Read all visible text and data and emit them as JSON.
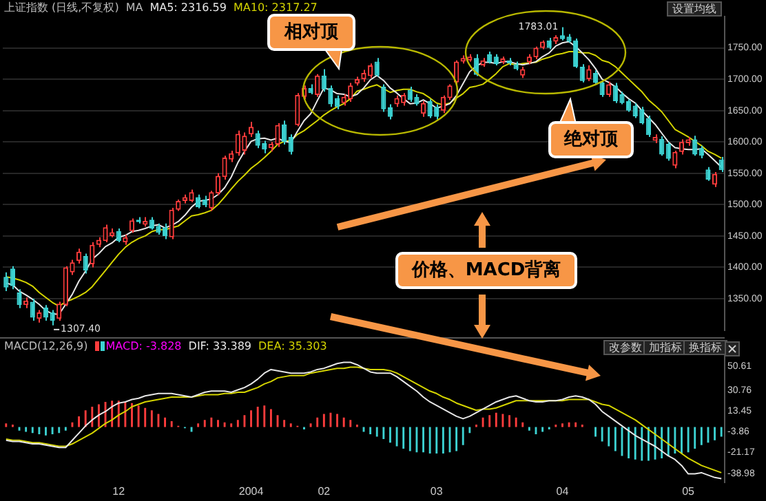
{
  "chart_data": [
    {
      "type": "candlestick",
      "title": "上证指数 (日线,不复权)",
      "legend_title": "MA",
      "legend": "top left",
      "grid": "y",
      "tick_labels": "y",
      "categories": [
        null,
        null,
        null,
        null,
        null,
        null,
        null,
        null,
        null,
        null,
        null,
        null,
        null,
        null,
        null,
        null,
        null,
        "12",
        null,
        null,
        null,
        null,
        null,
        null,
        null,
        null,
        null,
        null,
        null,
        null,
        null,
        null,
        null,
        null,
        null,
        null,
        null,
        "2004",
        null,
        null,
        null,
        null,
        null,
        null,
        null,
        null,
        null,
        null,
        "02",
        null,
        null,
        null,
        null,
        null,
        null,
        null,
        null,
        null,
        null,
        null,
        null,
        null,
        null,
        null,
        null,
        "03",
        null,
        null,
        null,
        null,
        null,
        null,
        null,
        null,
        null,
        null,
        null,
        null,
        null,
        null,
        null,
        null,
        null,
        null,
        "04",
        null,
        null,
        null,
        null,
        null,
        null,
        null,
        null,
        null,
        null,
        null,
        null,
        null,
        null,
        null,
        null,
        null,
        null,
        "05",
        null,
        null,
        null,
        null,
        null
      ],
      "ylim": [
        1300,
        1800
      ],
      "yticks": [
        {
          "value": 1350,
          "label": "1350.00"
        },
        {
          "value": 1400,
          "label": "1400.00"
        },
        {
          "value": 1450,
          "label": "1450.00"
        },
        {
          "value": 1500,
          "label": "1500.00"
        },
        {
          "value": 1550,
          "label": "1550.00"
        },
        {
          "value": 1600,
          "label": "1600.00"
        },
        {
          "value": 1650,
          "label": "1650.00"
        },
        {
          "value": 1700,
          "label": "1700.00"
        },
        {
          "value": 1750,
          "label": "1750.00"
        }
      ],
      "ohlc": [
        [
          1385,
          1392,
          1362,
          1368
        ],
        [
          1398,
          1402,
          1365,
          1370
        ],
        [
          1360,
          1365,
          1335,
          1340
        ],
        [
          1340,
          1352,
          1335,
          1347
        ],
        [
          1345,
          1350,
          1315,
          1320
        ],
        [
          1318,
          1332,
          1312,
          1328
        ],
        [
          1336,
          1340,
          1315,
          1320
        ],
        [
          1328,
          1332,
          1307.4,
          1315
        ],
        [
          1318,
          1345,
          1315,
          1342
        ],
        [
          1340,
          1402,
          1338,
          1400
        ],
        [
          1392,
          1412,
          1388,
          1408
        ],
        [
          1410,
          1430,
          1406,
          1425
        ],
        [
          1418,
          1422,
          1390,
          1395
        ],
        [
          1405,
          1440,
          1400,
          1436
        ],
        [
          1436,
          1448,
          1432,
          1444
        ],
        [
          1442,
          1468,
          1440,
          1464
        ],
        [
          1450,
          1462,
          1448,
          1456
        ],
        [
          1458,
          1462,
          1440,
          1442
        ],
        [
          1440,
          1452,
          1436,
          1448
        ],
        [
          1458,
          1478,
          1455,
          1475
        ],
        [
          1476,
          1480,
          1470,
          1472
        ],
        [
          1468,
          1480,
          1465,
          1474
        ],
        [
          1476,
          1480,
          1460,
          1462
        ],
        [
          1466,
          1470,
          1452,
          1455
        ],
        [
          1464,
          1470,
          1445,
          1450
        ],
        [
          1448,
          1495,
          1445,
          1492
        ],
        [
          1492,
          1508,
          1490,
          1506
        ],
        [
          1506,
          1516,
          1502,
          1512
        ],
        [
          1506,
          1524,
          1504,
          1520
        ],
        [
          1512,
          1516,
          1494,
          1496
        ],
        [
          1508,
          1514,
          1496,
          1499
        ],
        [
          1494,
          1522,
          1490,
          1520
        ],
        [
          1518,
          1550,
          1515,
          1546
        ],
        [
          1544,
          1578,
          1540,
          1575
        ],
        [
          1572,
          1586,
          1568,
          1582
        ],
        [
          1582,
          1618,
          1578,
          1613
        ],
        [
          1586,
          1615,
          1580,
          1610
        ],
        [
          1612,
          1632,
          1608,
          1624
        ],
        [
          1614,
          1618,
          1590,
          1594
        ],
        [
          1598,
          1602,
          1582,
          1588
        ],
        [
          1590,
          1600,
          1585,
          1597
        ],
        [
          1596,
          1630,
          1592,
          1627
        ],
        [
          1628,
          1634,
          1596,
          1600
        ],
        [
          1608,
          1612,
          1580,
          1584
        ],
        [
          1627,
          1678,
          1625,
          1675
        ],
        [
          1672,
          1690,
          1668,
          1686
        ],
        [
          1686,
          1692,
          1676,
          1678
        ],
        [
          1675,
          1708,
          1672,
          1706
        ],
        [
          1706,
          1716,
          1680,
          1684
        ],
        [
          1686,
          1690,
          1656,
          1660
        ],
        [
          1670,
          1674,
          1652,
          1656
        ],
        [
          1662,
          1676,
          1658,
          1672
        ],
        [
          1668,
          1694,
          1664,
          1690
        ],
        [
          1693,
          1704,
          1690,
          1700
        ],
        [
          1700,
          1715,
          1696,
          1710
        ],
        [
          1705,
          1725,
          1702,
          1722
        ],
        [
          1728,
          1734,
          1704,
          1706
        ],
        [
          1688,
          1692,
          1648,
          1652
        ],
        [
          1655,
          1660,
          1636,
          1640
        ],
        [
          1660,
          1674,
          1656,
          1670
        ],
        [
          1662,
          1678,
          1658,
          1675
        ],
        [
          1683,
          1688,
          1664,
          1667
        ],
        [
          1672,
          1676,
          1658,
          1660
        ],
        [
          1645,
          1665,
          1640,
          1662
        ],
        [
          1665,
          1668,
          1638,
          1641
        ],
        [
          1656,
          1660,
          1636,
          1640
        ],
        [
          1650,
          1674,
          1646,
          1672
        ],
        [
          1670,
          1692,
          1667,
          1690
        ],
        [
          1695,
          1730,
          1692,
          1728
        ],
        [
          1728,
          1738,
          1725,
          1734
        ],
        [
          1730,
          1740,
          1728,
          1736
        ],
        [
          1734,
          1740,
          1705,
          1707
        ],
        [
          1722,
          1734,
          1720,
          1730
        ],
        [
          1740,
          1744,
          1725,
          1727
        ],
        [
          1736,
          1740,
          1722,
          1724
        ],
        [
          1727,
          1736,
          1724,
          1733
        ],
        [
          1730,
          1734,
          1722,
          1725
        ],
        [
          1724,
          1728,
          1714,
          1716
        ],
        [
          1706,
          1720,
          1702,
          1716
        ],
        [
          1727,
          1740,
          1724,
          1736
        ],
        [
          1735,
          1752,
          1732,
          1750
        ],
        [
          1750,
          1762,
          1748,
          1760
        ],
        [
          1762,
          1766,
          1748,
          1750
        ],
        [
          1760,
          1770,
          1756,
          1767
        ],
        [
          1770,
          1783.01,
          1762,
          1764
        ],
        [
          1768,
          1772,
          1758,
          1760
        ],
        [
          1762,
          1765,
          1718,
          1720
        ],
        [
          1720,
          1724,
          1695,
          1697
        ],
        [
          1700,
          1722,
          1697,
          1716
        ],
        [
          1710,
          1714,
          1692,
          1694
        ],
        [
          1695,
          1698,
          1672,
          1675
        ],
        [
          1675,
          1696,
          1672,
          1692
        ],
        [
          1690,
          1694,
          1662,
          1665
        ],
        [
          1676,
          1680,
          1660,
          1662
        ],
        [
          1665,
          1668,
          1648,
          1650
        ],
        [
          1658,
          1662,
          1638,
          1641
        ],
        [
          1652,
          1656,
          1628,
          1630
        ],
        [
          1638,
          1642,
          1608,
          1611
        ],
        [
          1602,
          1612,
          1598,
          1608
        ],
        [
          1605,
          1609,
          1578,
          1580
        ],
        [
          1597,
          1600,
          1570,
          1573
        ],
        [
          1562,
          1586,
          1558,
          1584
        ],
        [
          1584,
          1604,
          1580,
          1600
        ],
        [
          1598,
          1608,
          1594,
          1604
        ],
        [
          1604,
          1610,
          1578,
          1580
        ],
        [
          1590,
          1594,
          1574,
          1578
        ],
        [
          1556,
          1560,
          1538,
          1540
        ],
        [
          1532,
          1552,
          1528,
          1549
        ],
        [
          1572,
          1576,
          1552,
          1555
        ]
      ],
      "series": [
        {
          "type": "line",
          "name": "MA5: 2316.59",
          "color": "#e6e6e6",
          "values": [
            1375,
            1372,
            1362,
            1356,
            1349,
            1341,
            1331,
            1326,
            1325,
            1341,
            1357,
            1378,
            1394,
            1413,
            1422,
            1433,
            1439,
            1448,
            1451,
            1457,
            1459,
            1462,
            1466,
            1468,
            1463,
            1467,
            1473,
            1483,
            1496,
            1505,
            1507,
            1509,
            1516,
            1527,
            1544,
            1567,
            1585,
            1601,
            1605,
            1606,
            1603,
            1606,
            1601,
            1599,
            1617,
            1634,
            1645,
            1666,
            1686,
            1683,
            1677,
            1676,
            1672,
            1676,
            1686,
            1699,
            1706,
            1698,
            1686,
            1678,
            1669,
            1661,
            1662,
            1667,
            1661,
            1654,
            1657,
            1661,
            1674,
            1693,
            1712,
            1721,
            1727,
            1727,
            1725,
            1728,
            1728,
            1725,
            1723,
            1725,
            1728,
            1736,
            1742,
            1753,
            1758,
            1760,
            1752,
            1742,
            1731,
            1717,
            1700,
            1695,
            1688,
            1678,
            1669,
            1662,
            1650,
            1639,
            1628,
            1614,
            1600,
            1591,
            1589,
            1588,
            1588,
            1589,
            1580,
            1570,
            1560
          ]
        },
        {
          "type": "line",
          "name": "MA10: 2317.27",
          "color": "#d4d400",
          "values": [
            1385,
            1383,
            1380,
            1376,
            1370,
            1360,
            1352,
            1344,
            1338,
            1345,
            1349,
            1354,
            1360,
            1369,
            1382,
            1395,
            1408,
            1421,
            1432,
            1440,
            1446,
            1450,
            1457,
            1460,
            1460,
            1463,
            1466,
            1474,
            1482,
            1484,
            1487,
            1491,
            1500,
            1512,
            1525,
            1537,
            1547,
            1558,
            1566,
            1575,
            1585,
            1596,
            1601,
            1602,
            1612,
            1618,
            1626,
            1634,
            1643,
            1650,
            1656,
            1661,
            1669,
            1681,
            1684,
            1688,
            1691,
            1685,
            1679,
            1682,
            1684,
            1684,
            1680,
            1677,
            1670,
            1662,
            1659,
            1662,
            1670,
            1677,
            1687,
            1689,
            1692,
            1700,
            1709,
            1720,
            1725,
            1723,
            1725,
            1726,
            1727,
            1732,
            1735,
            1739,
            1741,
            1744,
            1744,
            1742,
            1742,
            1738,
            1730,
            1727,
            1720,
            1710,
            1700,
            1690,
            1680,
            1667,
            1658,
            1648,
            1634,
            1620,
            1614,
            1608,
            1601,
            1594,
            1585,
            1580,
            1574
          ]
        }
      ],
      "annotations": [
        "相对顶",
        "绝对顶",
        "价格、MACD背离",
        "设置均线",
        "1783.01",
        "1307.40"
      ]
    },
    {
      "type": "line",
      "title": "MACD(12,26,9)",
      "legend": "top left",
      "ylim": [
        -46,
        60
      ],
      "yticks": [
        50.61,
        30.76,
        13.45,
        -3.86,
        -21.17,
        -38.98
      ],
      "categories": [
        null,
        null,
        null,
        null,
        null,
        null,
        null,
        null,
        null,
        null,
        null,
        null,
        null,
        null,
        null,
        null,
        null,
        "12",
        null,
        null,
        null,
        null,
        null,
        null,
        null,
        null,
        null,
        null,
        null,
        null,
        null,
        null,
        null,
        null,
        null,
        null,
        null,
        "2004",
        null,
        null,
        null,
        null,
        null,
        null,
        null,
        null,
        null,
        null,
        "02",
        null,
        null,
        null,
        null,
        null,
        null,
        null,
        null,
        null,
        null,
        null,
        null,
        null,
        null,
        null,
        null,
        "03",
        null,
        null,
        null,
        null,
        null,
        null,
        null,
        null,
        null,
        null,
        null,
        null,
        null,
        null,
        null,
        null,
        null,
        null,
        "04",
        null,
        null,
        null,
        null,
        null,
        null,
        null,
        null,
        null,
        null,
        null,
        null,
        null,
        null,
        null,
        null,
        null,
        null,
        "05",
        null,
        null,
        null,
        null,
        null
      ],
      "series": [
        {
          "type": "bar",
          "name": "MACD: -3.828",
          "color": "#ff00ff",
          "values": [
            3,
            2,
            -3,
            -4,
            -5,
            -6,
            -7,
            -6,
            -5,
            -3,
            4,
            9,
            14,
            17,
            19,
            21,
            22,
            22,
            21,
            20,
            18,
            16,
            14,
            11,
            8,
            5,
            1,
            -1,
            -4,
            3,
            6,
            8,
            6,
            4,
            3,
            6,
            10,
            14,
            17,
            18,
            15,
            10,
            6,
            3,
            1,
            -2,
            3,
            8,
            11,
            12,
            11,
            8,
            6,
            2,
            -4,
            -6,
            -8,
            -10,
            -13,
            -16,
            -18,
            -20,
            -21,
            -21,
            -22,
            -22,
            -22,
            -21,
            -20,
            -15,
            -5,
            2,
            8,
            10,
            12,
            11,
            10,
            8,
            4,
            -3,
            -6,
            -4,
            -2,
            2,
            3,
            4,
            4,
            2,
            0,
            -8,
            -12,
            -16,
            -20,
            -24,
            -26,
            -27,
            -28,
            -28,
            -27,
            -26,
            -24,
            -22,
            -22,
            -21,
            -18,
            -15,
            -13,
            -11,
            -8
          ],
          "colors": [
            "#ff3c3c",
            "#ff3c3c",
            "#3cd2d2",
            "#3cd2d2",
            "#3cd2d2",
            "#3cd2d2",
            "#3cd2d2",
            "#3cd2d2",
            "#3cd2d2",
            "#3cd2d2",
            "#ff3c3c",
            "#ff3c3c",
            "#ff3c3c",
            "#ff3c3c",
            "#ff3c3c",
            "#ff3c3c",
            "#ff3c3c",
            "#ff3c3c",
            "#ff3c3c",
            "#ff3c3c",
            "#ff3c3c",
            "#ff3c3c",
            "#ff3c3c",
            "#ff3c3c",
            "#ff3c3c",
            "#ff3c3c",
            "#ff3c3c",
            "#3cd2d2",
            "#3cd2d2",
            "#ff3c3c",
            "#ff3c3c",
            "#ff3c3c",
            "#ff3c3c",
            "#ff3c3c",
            "#ff3c3c",
            "#ff3c3c",
            "#ff3c3c",
            "#ff3c3c",
            "#ff3c3c",
            "#ff3c3c",
            "#ff3c3c",
            "#ff3c3c",
            "#ff3c3c",
            "#ff3c3c",
            "#ff3c3c",
            "#3cd2d2",
            "#ff3c3c",
            "#ff3c3c",
            "#ff3c3c",
            "#ff3c3c",
            "#ff3c3c",
            "#ff3c3c",
            "#ff3c3c",
            "#ff3c3c",
            "#3cd2d2",
            "#3cd2d2",
            "#3cd2d2",
            "#3cd2d2",
            "#3cd2d2",
            "#3cd2d2",
            "#3cd2d2",
            "#3cd2d2",
            "#3cd2d2",
            "#3cd2d2",
            "#3cd2d2",
            "#3cd2d2",
            "#3cd2d2",
            "#3cd2d2",
            "#3cd2d2",
            "#3cd2d2",
            "#3cd2d2",
            "#ff3c3c",
            "#ff3c3c",
            "#ff3c3c",
            "#ff3c3c",
            "#ff3c3c",
            "#ff3c3c",
            "#ff3c3c",
            "#ff3c3c",
            "#3cd2d2",
            "#3cd2d2",
            "#3cd2d2",
            "#3cd2d2",
            "#ff3c3c",
            "#ff3c3c",
            "#ff3c3c",
            "#ff3c3c",
            "#ff3c3c",
            "#ff3c3c",
            "#3cd2d2",
            "#3cd2d2",
            "#3cd2d2",
            "#3cd2d2",
            "#3cd2d2",
            "#3cd2d2",
            "#3cd2d2",
            "#3cd2d2",
            "#3cd2d2",
            "#3cd2d2",
            "#3cd2d2",
            "#3cd2d2",
            "#3cd2d2",
            "#3cd2d2",
            "#3cd2d2",
            "#3cd2d2",
            "#3cd2d2",
            "#3cd2d2",
            "#3cd2d2",
            "#3cd2d2"
          ]
        },
        {
          "type": "line",
          "name": "DIF: 33.389",
          "color": "#e6e6e6",
          "values": [
            -11,
            -12,
            -12,
            -13,
            -14,
            -14,
            -15,
            -16,
            -17,
            -17,
            -11,
            -5,
            1,
            6,
            10,
            13,
            17,
            20,
            21,
            23,
            24,
            26,
            27,
            28,
            28,
            28,
            27,
            26,
            25,
            27,
            29,
            30,
            30,
            30,
            29,
            31,
            33,
            36,
            40,
            45,
            48,
            47,
            46,
            45,
            45,
            45,
            46,
            48,
            49,
            51,
            53,
            54,
            54,
            52,
            49,
            46,
            45,
            45,
            45,
            42,
            38,
            34,
            30,
            25,
            21,
            18,
            15,
            12,
            9,
            7,
            9,
            12,
            15,
            18,
            21,
            23,
            25,
            26,
            24,
            22,
            21,
            21,
            22,
            22,
            23,
            25,
            26,
            25,
            23,
            19,
            13,
            9,
            5,
            1,
            -3,
            -7,
            -10,
            -13,
            -16,
            -20,
            -24,
            -27,
            -32,
            -39,
            -39,
            -38,
            -40,
            -42,
            -43
          ]
        },
        {
          "type": "line",
          "name": "DEA: 35.303",
          "color": "#d4d400",
          "values": [
            -10,
            -11,
            -11,
            -12,
            -13,
            -13,
            -14,
            -15,
            -16,
            -16,
            -14,
            -11,
            -8,
            -5,
            -1,
            3,
            6,
            10,
            13,
            17,
            19,
            21,
            22,
            23,
            24,
            25,
            25,
            25,
            25,
            26,
            27,
            27,
            27,
            28,
            28,
            29,
            29,
            31,
            33,
            36,
            38,
            41,
            42,
            43,
            43,
            43,
            45,
            46,
            47,
            48,
            49,
            49,
            50,
            50,
            49,
            48,
            48,
            48,
            47,
            45,
            42,
            39,
            36,
            33,
            30,
            28,
            25,
            23,
            20,
            18,
            16,
            14,
            15,
            15,
            16,
            18,
            20,
            22,
            22,
            22,
            22,
            22,
            22,
            22,
            22,
            23,
            23,
            23,
            23,
            21,
            19,
            18,
            15,
            12,
            9,
            6,
            2,
            -2,
            -6,
            -10,
            -14,
            -18,
            -22,
            -26,
            -29,
            -32,
            -34,
            -36,
            -38
          ]
        }
      ],
      "annotations": [
        "改参数",
        "加指标",
        "换指标"
      ]
    }
  ]
}
